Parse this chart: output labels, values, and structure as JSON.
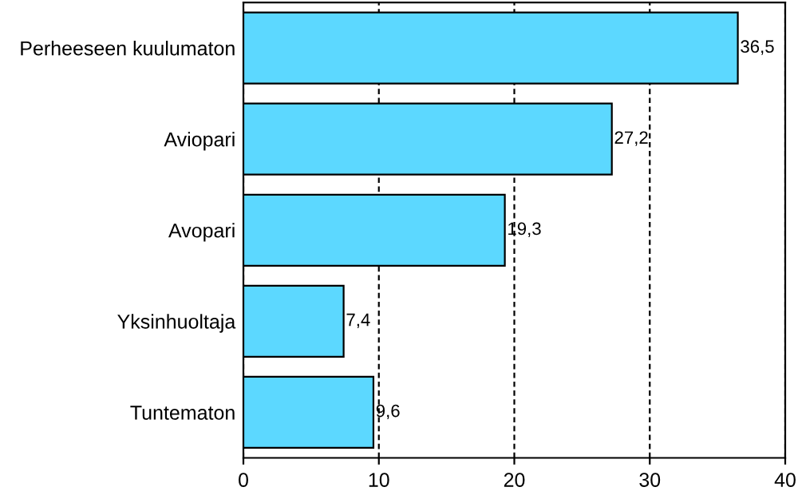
{
  "chart_data": {
    "type": "bar",
    "orientation": "horizontal",
    "categories": [
      "Perheeseen kuulumaton",
      "Aviopari",
      "Avopari",
      "Yksinhuoltaja",
      "Tuntematon"
    ],
    "values": [
      36.5,
      27.2,
      19.3,
      7.4,
      9.6
    ],
    "value_labels": [
      "36,5",
      "27,2",
      "19,3",
      "7,4",
      "9,6"
    ],
    "color": "#5cd8ff",
    "xlim": [
      0,
      40
    ],
    "xticks": [
      0,
      10,
      20,
      30,
      40
    ],
    "grid": "x",
    "legend": false
  }
}
